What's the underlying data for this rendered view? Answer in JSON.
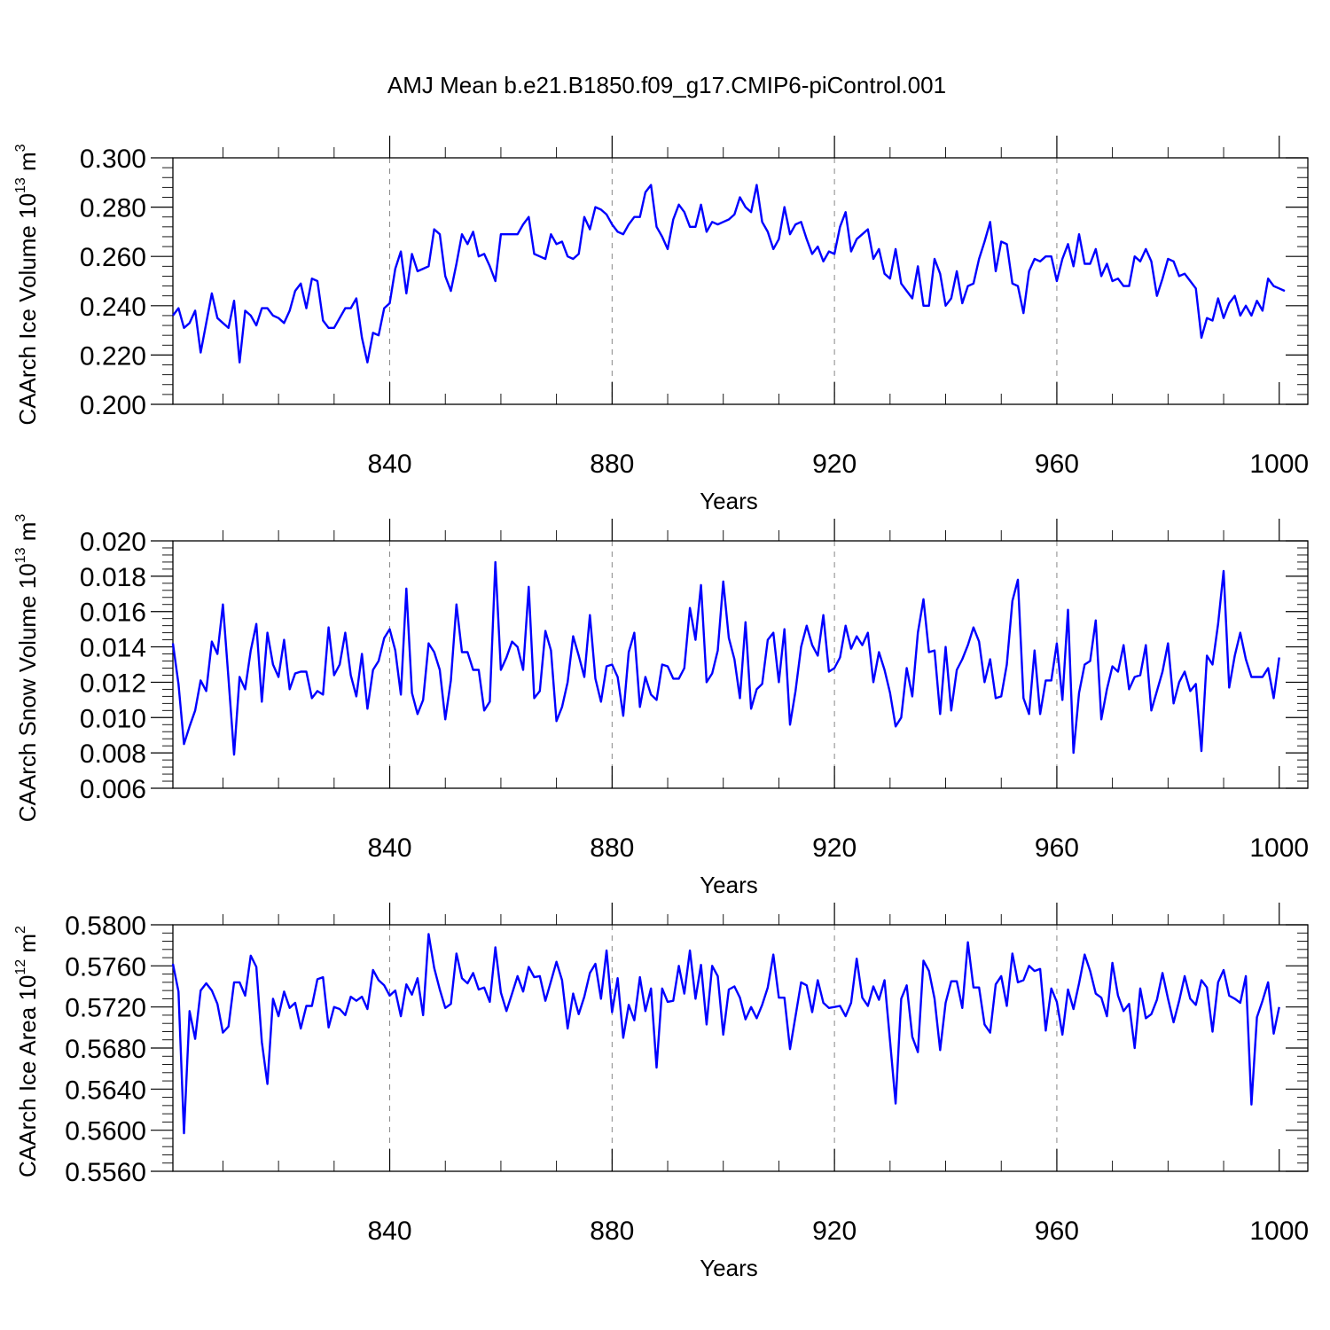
{
  "title": "AMJ Mean b.e21.B1850.f09_g17.CMIP6-piControl.001",
  "colors": {
    "series": "#0000ff",
    "axes": "#000000",
    "grid": "#888888"
  },
  "chart_data": [
    {
      "type": "line",
      "xlabel": "Years",
      "ylabel": "CAArch Ice Volume 10",
      "ylabel_exp": "13",
      "ylabel_unit": " m",
      "ylabel_unit_exp": "3",
      "xlim": [
        801,
        1001
      ],
      "ylim": [
        0.2,
        0.3
      ],
      "yticks": [
        "0.200",
        "0.220",
        "0.240",
        "0.260",
        "0.280",
        "0.300"
      ],
      "xticks": [
        "840",
        "880",
        "920",
        "960",
        "1000"
      ],
      "grid_x": true,
      "x_start": 801,
      "values": [
        0.236,
        0.239,
        0.231,
        0.233,
        0.238,
        0.221,
        0.233,
        0.245,
        0.235,
        0.233,
        0.231,
        0.242,
        0.217,
        0.238,
        0.236,
        0.232,
        0.239,
        0.239,
        0.236,
        0.235,
        0.233,
        0.238,
        0.246,
        0.249,
        0.239,
        0.251,
        0.25,
        0.234,
        0.231,
        0.231,
        0.235,
        0.239,
        0.239,
        0.243,
        0.227,
        0.217,
        0.229,
        0.228,
        0.239,
        0.241,
        0.255,
        0.262,
        0.245,
        0.261,
        0.254,
        0.255,
        0.256,
        0.271,
        0.269,
        0.252,
        0.246,
        0.257,
        0.269,
        0.265,
        0.27,
        0.26,
        0.261,
        0.256,
        0.25,
        0.269,
        0.269,
        0.269,
        0.269,
        0.273,
        0.276,
        0.261,
        0.26,
        0.259,
        0.269,
        0.265,
        0.266,
        0.26,
        0.259,
        0.261,
        0.276,
        0.271,
        0.28,
        0.279,
        0.277,
        0.273,
        0.27,
        0.269,
        0.273,
        0.276,
        0.276,
        0.286,
        0.289,
        0.272,
        0.268,
        0.263,
        0.275,
        0.281,
        0.278,
        0.272,
        0.272,
        0.281,
        0.27,
        0.274,
        0.273,
        0.274,
        0.275,
        0.277,
        0.284,
        0.28,
        0.278,
        0.289,
        0.274,
        0.27,
        0.263,
        0.267,
        0.28,
        0.269,
        0.273,
        0.274,
        0.267,
        0.261,
        0.264,
        0.258,
        0.262,
        0.261,
        0.272,
        0.278,
        0.262,
        0.267,
        0.269,
        0.271,
        0.259,
        0.263,
        0.253,
        0.251,
        0.263,
        0.249,
        0.246,
        0.243,
        0.256,
        0.24,
        0.24,
        0.259,
        0.253,
        0.24,
        0.243,
        0.254,
        0.241,
        0.248,
        0.249,
        0.259,
        0.266,
        0.274,
        0.254,
        0.266,
        0.265,
        0.249,
        0.248,
        0.237,
        0.254,
        0.259,
        0.258,
        0.26,
        0.26,
        0.25,
        0.259,
        0.265,
        0.256,
        0.269,
        0.257,
        0.257,
        0.263,
        0.252,
        0.257,
        0.25,
        0.251,
        0.248,
        0.248,
        0.26,
        0.258,
        0.263,
        0.258,
        0.244,
        0.251,
        0.259,
        0.258,
        0.252,
        0.253,
        0.25,
        0.247,
        0.227,
        0.235,
        0.234,
        0.243,
        0.235,
        0.241,
        0.244,
        0.236,
        0.24,
        0.236,
        0.242,
        0.238,
        0.251,
        0.248,
        0.247,
        0.246
      ]
    },
    {
      "type": "line",
      "xlabel": "Years",
      "ylabel": "CAArch Snow Volume 10",
      "ylabel_exp": "13",
      "ylabel_unit": " m",
      "ylabel_unit_exp": "3",
      "xlim": [
        801,
        1001
      ],
      "ylim": [
        0.006,
        0.02
      ],
      "yticks": [
        "0.006",
        "0.008",
        "0.010",
        "0.012",
        "0.014",
        "0.016",
        "0.018",
        "0.020"
      ],
      "xticks": [
        "840",
        "880",
        "920",
        "960",
        "1000"
      ],
      "grid_x": true,
      "x_start": 801,
      "values": [
        0.0142,
        0.0119,
        0.0085,
        0.0095,
        0.0104,
        0.0121,
        0.0115,
        0.0143,
        0.0136,
        0.0164,
        0.0122,
        0.0079,
        0.0123,
        0.0116,
        0.0138,
        0.0153,
        0.0109,
        0.0148,
        0.013,
        0.0123,
        0.0144,
        0.0116,
        0.0125,
        0.0126,
        0.0126,
        0.0111,
        0.0115,
        0.0113,
        0.0151,
        0.0124,
        0.013,
        0.0148,
        0.0124,
        0.0112,
        0.0136,
        0.0105,
        0.0127,
        0.0132,
        0.0145,
        0.015,
        0.0138,
        0.0113,
        0.0173,
        0.0114,
        0.0102,
        0.011,
        0.0142,
        0.0137,
        0.0127,
        0.0099,
        0.0121,
        0.0164,
        0.0137,
        0.0137,
        0.0127,
        0.0127,
        0.0104,
        0.0109,
        0.0188,
        0.0127,
        0.0134,
        0.0143,
        0.014,
        0.0127,
        0.0174,
        0.0111,
        0.0115,
        0.0149,
        0.0138,
        0.0098,
        0.0106,
        0.012,
        0.0146,
        0.0135,
        0.0123,
        0.0158,
        0.0122,
        0.0109,
        0.0129,
        0.013,
        0.0123,
        0.0101,
        0.0137,
        0.0148,
        0.0106,
        0.0123,
        0.0113,
        0.011,
        0.013,
        0.0129,
        0.0122,
        0.0122,
        0.0128,
        0.0162,
        0.0144,
        0.0175,
        0.012,
        0.0125,
        0.0138,
        0.0177,
        0.0145,
        0.0133,
        0.0111,
        0.0154,
        0.0105,
        0.0116,
        0.0119,
        0.0144,
        0.0148,
        0.012,
        0.015,
        0.0096,
        0.0115,
        0.014,
        0.0152,
        0.0141,
        0.0135,
        0.0158,
        0.0126,
        0.0128,
        0.0134,
        0.0152,
        0.0139,
        0.0146,
        0.0141,
        0.0148,
        0.012,
        0.0137,
        0.0127,
        0.0114,
        0.0095,
        0.01,
        0.0128,
        0.0112,
        0.0148,
        0.0167,
        0.0137,
        0.0138,
        0.0102,
        0.014,
        0.0104,
        0.0127,
        0.0133,
        0.0141,
        0.0151,
        0.0143,
        0.012,
        0.0133,
        0.0111,
        0.0112,
        0.013,
        0.0166,
        0.0178,
        0.0111,
        0.0102,
        0.0138,
        0.0102,
        0.0121,
        0.0121,
        0.0142,
        0.011,
        0.0161,
        0.008,
        0.0114,
        0.013,
        0.0132,
        0.0155,
        0.0099,
        0.0116,
        0.0129,
        0.0126,
        0.0141,
        0.0116,
        0.0123,
        0.0124,
        0.0141,
        0.0104,
        0.0115,
        0.0126,
        0.0142,
        0.0108,
        0.012,
        0.0126,
        0.0115,
        0.0119,
        0.0081,
        0.0135,
        0.013,
        0.0153,
        0.0183,
        0.0117,
        0.0135,
        0.0148,
        0.0133,
        0.0123,
        0.0123,
        0.0123,
        0.0128,
        0.0111,
        0.0134
      ]
    },
    {
      "type": "line",
      "xlabel": "Years",
      "ylabel": "CAArch Ice Area 10",
      "ylabel_exp": "12",
      "ylabel_unit": " m",
      "ylabel_unit_exp": "2",
      "xlim": [
        801,
        1001
      ],
      "ylim": [
        0.556,
        0.58
      ],
      "yticks": [
        "0.5560",
        "0.5600",
        "0.5640",
        "0.5680",
        "0.5720",
        "0.5760",
        "0.5800"
      ],
      "xticks": [
        "840",
        "880",
        "920",
        "960",
        "1000"
      ],
      "grid_x": true,
      "x_start": 801,
      "values": [
        0.5762,
        0.5735,
        0.5597,
        0.5716,
        0.5689,
        0.5736,
        0.5743,
        0.5736,
        0.5723,
        0.5695,
        0.5701,
        0.5744,
        0.5744,
        0.5731,
        0.577,
        0.5759,
        0.5686,
        0.5645,
        0.5728,
        0.5711,
        0.5735,
        0.5719,
        0.5724,
        0.5699,
        0.5721,
        0.5721,
        0.5747,
        0.5749,
        0.57,
        0.572,
        0.5718,
        0.5712,
        0.573,
        0.5726,
        0.573,
        0.5718,
        0.5756,
        0.5746,
        0.5741,
        0.5731,
        0.5736,
        0.5711,
        0.5742,
        0.5732,
        0.5748,
        0.5712,
        0.5791,
        0.5758,
        0.5737,
        0.5719,
        0.5723,
        0.5772,
        0.5748,
        0.5743,
        0.5753,
        0.5737,
        0.5739,
        0.5725,
        0.5778,
        0.5734,
        0.5716,
        0.5733,
        0.575,
        0.5735,
        0.5759,
        0.5749,
        0.575,
        0.5726,
        0.5745,
        0.5764,
        0.5746,
        0.5699,
        0.5733,
        0.5713,
        0.573,
        0.5753,
        0.5762,
        0.5728,
        0.5775,
        0.5715,
        0.5748,
        0.569,
        0.5722,
        0.5707,
        0.5749,
        0.5716,
        0.5738,
        0.5661,
        0.5738,
        0.5725,
        0.5726,
        0.576,
        0.5733,
        0.5775,
        0.5728,
        0.5761,
        0.5703,
        0.576,
        0.575,
        0.5693,
        0.5737,
        0.574,
        0.5729,
        0.5708,
        0.572,
        0.5709,
        0.5722,
        0.5739,
        0.5771,
        0.5729,
        0.5729,
        0.5679,
        0.5711,
        0.5744,
        0.5741,
        0.5715,
        0.5746,
        0.5724,
        0.5719,
        0.572,
        0.5721,
        0.5711,
        0.5724,
        0.5767,
        0.5729,
        0.5721,
        0.574,
        0.5727,
        0.5746,
        0.5687,
        0.5626,
        0.5728,
        0.5741,
        0.5691,
        0.5676,
        0.5765,
        0.5755,
        0.5728,
        0.5678,
        0.5724,
        0.5745,
        0.5745,
        0.5719,
        0.5783,
        0.5739,
        0.5739,
        0.5703,
        0.5695,
        0.5742,
        0.575,
        0.5721,
        0.5772,
        0.5744,
        0.5746,
        0.576,
        0.5755,
        0.5757,
        0.5697,
        0.5738,
        0.5725,
        0.5693,
        0.5737,
        0.5718,
        0.5743,
        0.5771,
        0.5755,
        0.5733,
        0.5729,
        0.5711,
        0.5763,
        0.5731,
        0.5716,
        0.5723,
        0.568,
        0.5738,
        0.5709,
        0.5713,
        0.5727,
        0.5753,
        0.5728,
        0.5705,
        0.5726,
        0.575,
        0.5728,
        0.5722,
        0.5746,
        0.5739,
        0.5696,
        0.5744,
        0.5756,
        0.5731,
        0.5728,
        0.5724,
        0.575,
        0.5625,
        0.571,
        0.5726,
        0.5744,
        0.5694,
        0.572
      ]
    }
  ]
}
